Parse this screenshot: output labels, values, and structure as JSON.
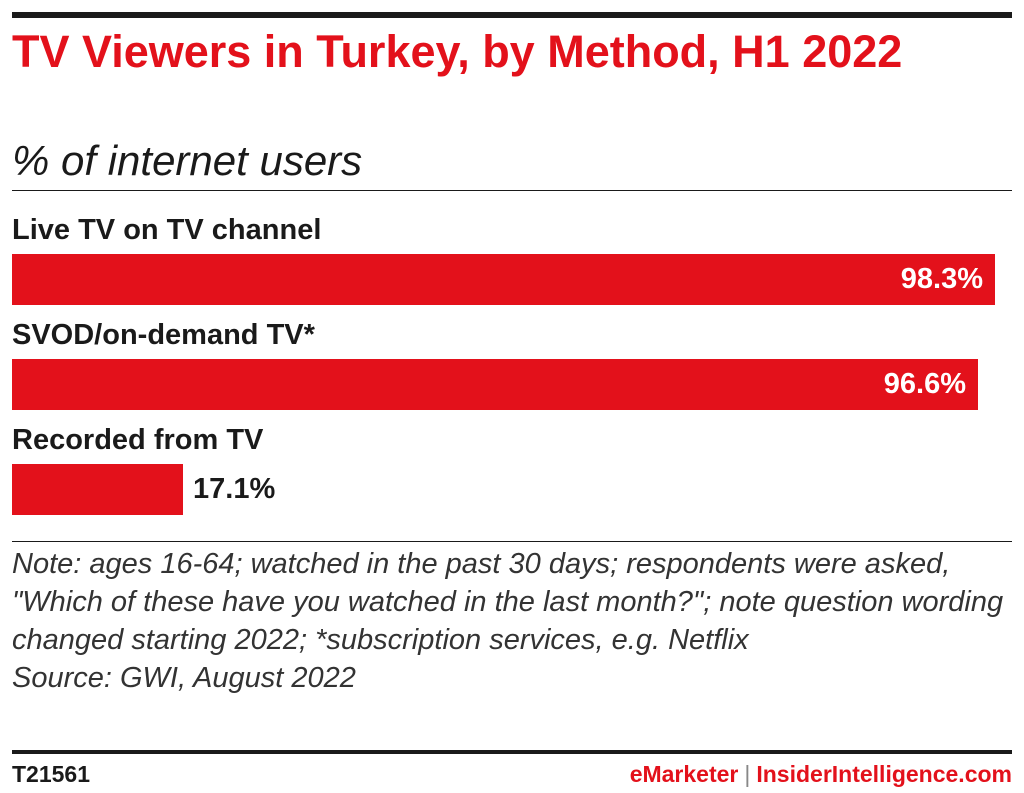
{
  "header": {
    "title": "TV Viewers in Turkey, by Method, H1 2022",
    "subtitle": "% of internet users"
  },
  "chart_data": {
    "type": "bar",
    "orientation": "horizontal",
    "categories": [
      "Live TV on TV channel",
      "SVOD/on-demand TV*",
      "Recorded from TV"
    ],
    "values": [
      98.3,
      96.6,
      17.1
    ],
    "value_labels": [
      "98.3%",
      "96.6%",
      "17.1%"
    ],
    "title": "TV Viewers in Turkey, by Method, H1 2022",
    "subtitle": "% of internet users",
    "xlim": [
      0,
      100
    ],
    "grid": false,
    "legend": "none",
    "bar_color": "#e3111b"
  },
  "notes": {
    "note": "Note: ages 16-64; watched in the past 30 days; respondents were asked, \"Which of these have you watched in the last month?\"; note question wording changed starting 2022; *subscription services, e.g. Netflix",
    "source": "Source: GWI, August 2022"
  },
  "footer": {
    "chart_id": "T21561",
    "brand_primary": "eMarketer",
    "brand_divider": "|",
    "brand_secondary": "InsiderIntelligence.com"
  },
  "colors": {
    "accent": "#e3111b",
    "text": "#1a1a1a"
  }
}
